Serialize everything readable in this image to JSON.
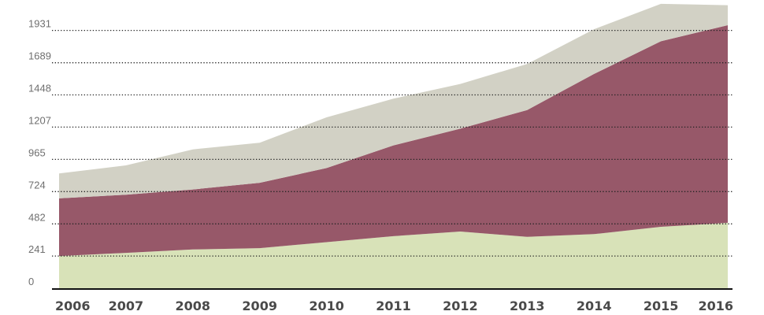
{
  "chart_data": {
    "type": "area",
    "stacked": true,
    "title": "",
    "xlabel": "",
    "ylabel": "",
    "categories": [
      "2006",
      "2007",
      "2008",
      "2009",
      "2010",
      "2011",
      "2012",
      "2013",
      "2014",
      "2015",
      "2016"
    ],
    "y_ticks": [
      "0",
      "241",
      "482",
      "724",
      "965",
      "1207",
      "1448",
      "1689",
      "1931"
    ],
    "ylim": [
      0,
      2100
    ],
    "grid": "horizontal dotted",
    "legend": "none",
    "series": [
      {
        "color": "#d8e2b8",
        "values": [
          241,
          265,
          290,
          300,
          345,
          390,
          425,
          385,
          405,
          460,
          490
        ]
      },
      {
        "color": "#975869",
        "values": [
          432,
          436,
          450,
          490,
          555,
          680,
          770,
          950,
          1200,
          1390,
          1480
        ]
      },
      {
        "color": "#d2d1c5",
        "values": [
          187,
          219,
          300,
          300,
          380,
          350,
          335,
          345,
          335,
          280,
          150
        ]
      }
    ]
  }
}
